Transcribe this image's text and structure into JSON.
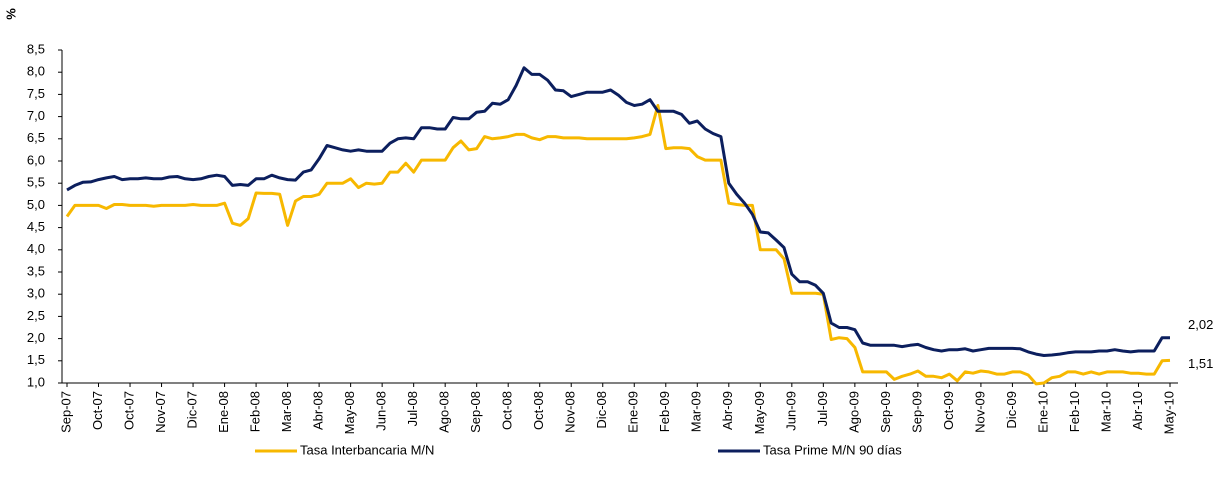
{
  "chart_data": {
    "type": "line",
    "y_label": "%",
    "categories": [
      "Sep-07",
      null,
      null,
      null,
      "Oct-07",
      null,
      null,
      null,
      "Oct-07",
      null,
      null,
      null,
      "Nov-07",
      null,
      null,
      null,
      "Dic-07",
      null,
      null,
      null,
      "Ene-08",
      null,
      null,
      null,
      "Feb-08",
      null,
      null,
      null,
      "Mar-08",
      null,
      null,
      null,
      "Abr-08",
      null,
      null,
      null,
      "May-08",
      null,
      null,
      null,
      "Jun-08",
      null,
      null,
      null,
      "Jul-08",
      null,
      null,
      null,
      "Ago-08",
      null,
      null,
      null,
      "Sep-08",
      null,
      null,
      null,
      "Oct-08",
      null,
      null,
      null,
      "Oct-08",
      null,
      null,
      null,
      "Nov-08",
      null,
      null,
      null,
      "Dic-08",
      null,
      null,
      null,
      "Ene-09",
      null,
      null,
      null,
      "Feb-09",
      null,
      null,
      null,
      "Mar-09",
      null,
      null,
      null,
      "Abr-09",
      null,
      null,
      null,
      "May-09",
      null,
      null,
      null,
      "Jun-09",
      null,
      null,
      null,
      "Jul-09",
      null,
      null,
      null,
      "Ago-09",
      null,
      null,
      null,
      "Sep-09",
      null,
      null,
      null,
      "Sep-09",
      null,
      null,
      null,
      "Oct-09",
      null,
      null,
      null,
      "Nov-09",
      null,
      null,
      null,
      "Dic-09",
      null,
      null,
      null,
      "Ene-10",
      null,
      null,
      null,
      "Feb-10",
      null,
      null,
      null,
      "Mar-10",
      null,
      null,
      null,
      "Abr-10",
      null,
      null,
      null,
      "May-10"
    ],
    "series": [
      {
        "name": "Tasa Interbancaria M/N",
        "color": "#f7b800",
        "values": [
          4.75,
          5.0,
          5.0,
          5.0,
          5.0,
          4.93,
          5.02,
          5.02,
          5.0,
          5.0,
          5.0,
          4.98,
          5.0,
          5.0,
          5.0,
          5.0,
          5.02,
          5.0,
          5.0,
          5.0,
          5.05,
          4.6,
          4.55,
          4.7,
          5.28,
          5.27,
          5.27,
          5.25,
          4.55,
          5.1,
          5.2,
          5.2,
          5.25,
          5.5,
          5.5,
          5.5,
          5.6,
          5.4,
          5.5,
          5.48,
          5.5,
          5.75,
          5.75,
          5.95,
          5.75,
          6.02,
          6.02,
          6.02,
          6.02,
          6.3,
          6.45,
          6.25,
          6.28,
          6.55,
          6.5,
          6.52,
          6.55,
          6.6,
          6.6,
          6.52,
          6.48,
          6.55,
          6.55,
          6.52,
          6.52,
          6.52,
          6.5,
          6.5,
          6.5,
          6.5,
          6.5,
          6.5,
          6.52,
          6.55,
          6.6,
          7.25,
          6.28,
          6.3,
          6.3,
          6.28,
          6.1,
          6.02,
          6.02,
          6.02,
          5.05,
          5.02,
          5.0,
          5.0,
          4.0,
          4.0,
          4.0,
          3.8,
          3.02,
          3.02,
          3.02,
          3.02,
          3.0,
          1.98,
          2.02,
          2.0,
          1.8,
          1.25,
          1.25,
          1.25,
          1.25,
          1.08,
          1.15,
          1.2,
          1.27,
          1.15,
          1.15,
          1.12,
          1.2,
          1.05,
          1.25,
          1.22,
          1.27,
          1.25,
          1.2,
          1.2,
          1.25,
          1.25,
          1.18,
          0.98,
          1.0,
          1.12,
          1.15,
          1.25,
          1.25,
          1.2,
          1.25,
          1.2,
          1.25,
          1.25,
          1.25,
          1.22,
          1.22,
          1.2,
          1.2,
          1.5,
          1.51
        ],
        "value_labels": [
          null,
          null,
          null,
          null,
          null,
          null,
          null,
          null,
          null,
          null,
          null,
          null,
          null,
          null,
          null,
          null,
          null,
          null,
          null,
          null,
          null,
          null,
          null,
          null,
          null,
          null,
          null,
          null,
          null,
          null,
          null,
          null,
          null,
          null,
          null,
          null,
          null,
          null,
          null,
          null,
          null,
          null,
          null,
          null,
          null,
          null,
          null,
          null,
          null,
          null,
          null,
          null,
          null,
          null,
          null,
          null,
          null,
          null,
          null,
          null,
          null,
          null,
          null,
          null,
          null,
          null,
          null,
          null,
          null,
          null,
          null,
          null,
          null,
          null,
          null,
          null,
          null,
          null,
          null,
          null,
          null,
          null,
          null,
          null,
          null,
          null,
          null,
          null,
          null,
          null,
          null,
          null,
          null,
          null,
          null,
          null,
          null,
          null,
          null,
          null,
          null,
          null,
          null,
          null,
          null,
          null,
          null,
          null,
          null,
          null,
          null,
          null,
          null,
          null,
          null,
          null,
          null,
          null,
          null,
          null,
          null,
          null,
          null,
          null,
          null,
          null,
          null,
          null,
          null,
          null,
          null,
          null,
          null,
          null,
          null,
          null,
          null,
          null,
          null,
          null,
          "1,51"
        ]
      },
      {
        "name": "Tasa Prime M/N 90 días",
        "color": "#0c1f5e",
        "values": [
          5.35,
          5.45,
          5.52,
          5.53,
          5.58,
          5.62,
          5.65,
          5.58,
          5.6,
          5.6,
          5.62,
          5.6,
          5.6,
          5.64,
          5.65,
          5.6,
          5.58,
          5.6,
          5.65,
          5.68,
          5.65,
          5.45,
          5.47,
          5.45,
          5.6,
          5.6,
          5.68,
          5.62,
          5.58,
          5.57,
          5.75,
          5.8,
          6.05,
          6.35,
          6.3,
          6.25,
          6.22,
          6.25,
          6.22,
          6.22,
          6.22,
          6.4,
          6.5,
          6.52,
          6.5,
          6.75,
          6.75,
          6.72,
          6.72,
          6.98,
          6.95,
          6.95,
          7.1,
          7.12,
          7.3,
          7.28,
          7.38,
          7.7,
          8.1,
          7.95,
          7.95,
          7.82,
          7.6,
          7.58,
          7.45,
          7.5,
          7.55,
          7.55,
          7.55,
          7.6,
          7.48,
          7.32,
          7.25,
          7.28,
          7.38,
          7.12,
          7.12,
          7.12,
          7.05,
          6.85,
          6.9,
          6.72,
          6.62,
          6.55,
          5.5,
          5.25,
          5.05,
          4.8,
          4.4,
          4.38,
          4.22,
          4.05,
          3.45,
          3.28,
          3.28,
          3.2,
          3.02,
          2.35,
          2.25,
          2.25,
          2.2,
          1.9,
          1.85,
          1.85,
          1.85,
          1.85,
          1.82,
          1.85,
          1.87,
          1.8,
          1.75,
          1.72,
          1.75,
          1.75,
          1.77,
          1.72,
          1.75,
          1.78,
          1.78,
          1.78,
          1.78,
          1.77,
          1.7,
          1.65,
          1.62,
          1.63,
          1.65,
          1.68,
          1.7,
          1.7,
          1.7,
          1.72,
          1.72,
          1.75,
          1.72,
          1.7,
          1.72,
          1.72,
          1.72,
          2.02,
          2.02
        ],
        "value_labels": [
          null,
          null,
          null,
          null,
          null,
          null,
          null,
          null,
          null,
          null,
          null,
          null,
          null,
          null,
          null,
          null,
          null,
          null,
          null,
          null,
          null,
          null,
          null,
          null,
          null,
          null,
          null,
          null,
          null,
          null,
          null,
          null,
          null,
          null,
          null,
          null,
          null,
          null,
          null,
          null,
          null,
          null,
          null,
          null,
          null,
          null,
          null,
          null,
          null,
          null,
          null,
          null,
          null,
          null,
          null,
          null,
          null,
          null,
          null,
          null,
          null,
          null,
          null,
          null,
          null,
          null,
          null,
          null,
          null,
          null,
          null,
          null,
          null,
          null,
          null,
          null,
          null,
          null,
          null,
          null,
          null,
          null,
          null,
          null,
          null,
          null,
          null,
          null,
          null,
          null,
          null,
          null,
          null,
          null,
          null,
          null,
          null,
          null,
          null,
          null,
          null,
          null,
          null,
          null,
          null,
          null,
          null,
          null,
          null,
          null,
          null,
          null,
          null,
          null,
          null,
          null,
          null,
          null,
          null,
          null,
          null,
          null,
          null,
          null,
          null,
          null,
          null,
          null,
          null,
          null,
          null,
          null,
          null,
          null,
          null,
          null,
          null,
          null,
          null,
          null,
          "2,02"
        ]
      }
    ],
    "ylim": [
      1.0,
      8.5
    ],
    "yticks": [
      {
        "value": 1.0,
        "label": "1,0"
      },
      {
        "value": 1.5,
        "label": "1,5"
      },
      {
        "value": 2.0,
        "label": "2,0"
      },
      {
        "value": 2.5,
        "label": "2,5"
      },
      {
        "value": 3.0,
        "label": "3,0"
      },
      {
        "value": 3.5,
        "label": "3,5"
      },
      {
        "value": 4.0,
        "label": "4,0"
      },
      {
        "value": 4.5,
        "label": "4,5"
      },
      {
        "value": 5.0,
        "label": "5,0"
      },
      {
        "value": 5.5,
        "label": "5,5"
      },
      {
        "value": 6.0,
        "label": "6,0"
      },
      {
        "value": 6.5,
        "label": "6,5"
      },
      {
        "value": 7.0,
        "label": "7,0"
      },
      {
        "value": 7.5,
        "label": "7,5"
      },
      {
        "value": 8.0,
        "label": "8,0"
      },
      {
        "value": 8.5,
        "label": "8,5"
      }
    ],
    "grid": false,
    "legend": "bottom"
  }
}
